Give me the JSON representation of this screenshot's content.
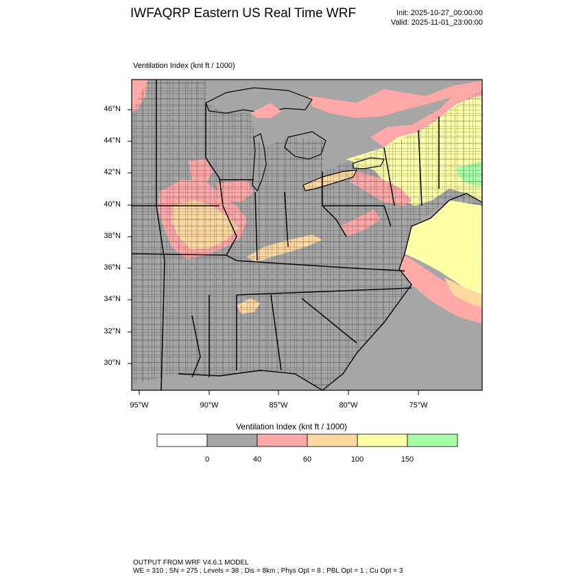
{
  "header": {
    "title": "IWFAQRP Eastern US Real Time WRF",
    "init": "Init: 2025-10-27_00:00:00",
    "valid": "Valid: 2025-11-01_23:00:00"
  },
  "plot": {
    "title": "Ventilation Index   (knt ft / 1000)",
    "lat_labels": [
      "46°N",
      "44°N",
      "42°N",
      "40°N",
      "38°N",
      "36°N",
      "34°N",
      "32°N",
      "30°N"
    ],
    "lon_labels": [
      "95°W",
      "90°W",
      "85°W",
      "80°W",
      "75°W"
    ]
  },
  "legend": {
    "title": "Ventilation Index  (knt ft / 1000)",
    "bins": [
      {
        "color": "#ffffff"
      },
      {
        "color": "#a6a6a6"
      },
      {
        "color": "#ffa8a8"
      },
      {
        "color": "#ffd8a0"
      },
      {
        "color": "#ffffa8"
      },
      {
        "color": "#a8ffa8"
      }
    ],
    "levels": [
      "0",
      "40",
      "60",
      "100",
      "150"
    ]
  },
  "colors": {
    "land_low": "#a6a6a6",
    "band_40_60": "#ffa8a8",
    "band_60_100": "#ffd8a0",
    "band_100_150": "#ffffa8",
    "band_150_plus": "#a8ffa8",
    "boundary": "#000000"
  },
  "footer": {
    "line1": "OUTPUT FROM WRF V4.6.1 MODEL",
    "line2": "WE = 310 ; SN = 275 ; Levels = 38 ; Dis = 8km ; Phys Opt = 8 ; PBL Opt = 1 ; Cu Opt = 3"
  }
}
